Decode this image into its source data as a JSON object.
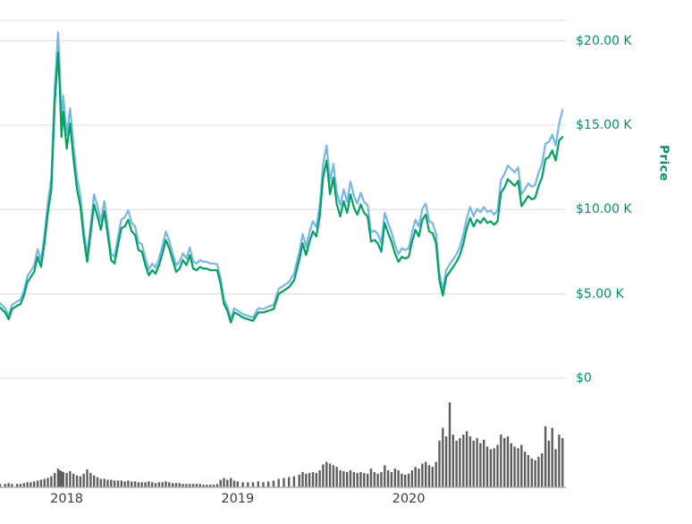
{
  "page": {
    "background": "#ffffff"
  },
  "chart_data": {
    "type": "line",
    "title": "",
    "grid": true,
    "legend": "none",
    "colors": {
      "grid": "#dcdcdc",
      "axis_line": "#b0b0b0",
      "background": "#ffffff"
    },
    "y_axis": {
      "title": "Price",
      "unit": "USD (thousands)",
      "color": "#00906c",
      "range": [
        0,
        21.2
      ],
      "ticks": [
        {
          "label": "$20.00 K",
          "value": 20
        },
        {
          "label": "$15.00 K",
          "value": 15
        },
        {
          "label": "$10.00 K",
          "value": 10
        },
        {
          "label": "$5.00 K",
          "value": 5
        },
        {
          "label": "$0",
          "value": 0
        }
      ]
    },
    "x_axis": {
      "unit": "year",
      "color": "#3c3c3c",
      "range": [
        2017.61,
        2020.92
      ],
      "ticks": [
        {
          "label": "2018",
          "value": 2018
        },
        {
          "label": "2019",
          "value": 2019
        },
        {
          "label": "2020",
          "value": 2020
        }
      ]
    },
    "x": [
      2017.61,
      2017.64,
      2017.66,
      2017.68,
      2017.71,
      2017.73,
      2017.75,
      2017.77,
      2017.79,
      2017.81,
      2017.83,
      2017.85,
      2017.87,
      2017.89,
      2017.91,
      2017.93,
      2017.95,
      2017.96,
      2017.97,
      2017.98,
      2018.0,
      2018.02,
      2018.04,
      2018.06,
      2018.08,
      2018.1,
      2018.12,
      2018.14,
      2018.16,
      2018.18,
      2018.2,
      2018.22,
      2018.24,
      2018.26,
      2018.28,
      2018.3,
      2018.32,
      2018.34,
      2018.36,
      2018.38,
      2018.4,
      2018.42,
      2018.44,
      2018.46,
      2018.48,
      2018.5,
      2018.52,
      2018.54,
      2018.56,
      2018.58,
      2018.6,
      2018.62,
      2018.64,
      2018.66,
      2018.68,
      2018.7,
      2018.72,
      2018.74,
      2018.76,
      2018.78,
      2018.8,
      2018.82,
      2018.84,
      2018.86,
      2018.88,
      2018.9,
      2018.92,
      2018.94,
      2018.96,
      2018.98,
      2019.0,
      2019.03,
      2019.06,
      2019.09,
      2019.12,
      2019.15,
      2019.18,
      2019.21,
      2019.24,
      2019.27,
      2019.3,
      2019.33,
      2019.36,
      2019.38,
      2019.4,
      2019.42,
      2019.44,
      2019.46,
      2019.48,
      2019.5,
      2019.52,
      2019.54,
      2019.56,
      2019.58,
      2019.6,
      2019.62,
      2019.64,
      2019.66,
      2019.68,
      2019.7,
      2019.72,
      2019.74,
      2019.76,
      2019.78,
      2019.8,
      2019.82,
      2019.84,
      2019.86,
      2019.88,
      2019.9,
      2019.92,
      2019.94,
      2019.96,
      2019.98,
      2020.0,
      2020.02,
      2020.04,
      2020.06,
      2020.08,
      2020.1,
      2020.12,
      2020.14,
      2020.16,
      2020.18,
      2020.2,
      2020.22,
      2020.24,
      2020.26,
      2020.28,
      2020.3,
      2020.32,
      2020.34,
      2020.36,
      2020.38,
      2020.4,
      2020.42,
      2020.44,
      2020.46,
      2020.48,
      2020.5,
      2020.52,
      2020.54,
      2020.56,
      2020.58,
      2020.6,
      2020.62,
      2020.64,
      2020.66,
      2020.68,
      2020.7,
      2020.72,
      2020.74,
      2020.76,
      2020.78,
      2020.8,
      2020.82,
      2020.84,
      2020.86,
      2020.88,
      2020.9
    ],
    "series": [
      {
        "name": "series-1-blue",
        "color": "#76b6e8",
        "values": [
          4.45,
          4.15,
          3.7,
          4.35,
          4.55,
          4.65,
          5.2,
          6.05,
          6.35,
          6.7,
          7.65,
          7.0,
          8.5,
          10.4,
          11.9,
          17.3,
          20.5,
          18.2,
          15.2,
          16.75,
          14.4,
          16.0,
          13.8,
          11.9,
          10.8,
          8.8,
          7.3,
          9.1,
          10.9,
          10.2,
          9.3,
          10.5,
          9.0,
          7.4,
          7.2,
          8.4,
          9.4,
          9.55,
          9.95,
          9.2,
          9.0,
          8.05,
          7.95,
          7.1,
          6.45,
          6.8,
          6.55,
          7.1,
          7.85,
          8.7,
          8.15,
          7.4,
          6.7,
          6.9,
          7.4,
          7.1,
          7.75,
          6.9,
          6.8,
          7.0,
          6.9,
          6.9,
          6.8,
          6.8,
          6.75,
          5.95,
          4.65,
          4.25,
          3.5,
          4.15,
          4.0,
          3.8,
          3.7,
          3.6,
          4.15,
          4.1,
          4.25,
          4.35,
          5.3,
          5.5,
          5.7,
          6.2,
          7.45,
          8.55,
          7.8,
          8.65,
          9.3,
          8.95,
          10.25,
          12.7,
          13.8,
          11.65,
          12.7,
          11.0,
          10.25,
          11.2,
          10.45,
          11.65,
          10.8,
          10.35,
          11.0,
          10.45,
          10.25,
          8.65,
          8.75,
          8.55,
          8.0,
          9.8,
          9.2,
          8.65,
          7.9,
          7.35,
          7.7,
          7.6,
          7.7,
          8.65,
          9.4,
          9.0,
          10.05,
          10.35,
          9.3,
          9.2,
          8.55,
          6.2,
          5.25,
          6.4,
          6.75,
          7.05,
          7.35,
          7.8,
          8.55,
          9.5,
          10.15,
          9.6,
          10.05,
          9.85,
          10.15,
          9.85,
          9.95,
          9.7,
          9.95,
          11.75,
          12.1,
          12.6,
          12.4,
          12.2,
          12.5,
          10.9,
          11.2,
          11.55,
          11.35,
          11.45,
          12.2,
          12.7,
          13.9,
          14.0,
          14.45,
          13.8,
          15.1,
          15.9
        ]
      },
      {
        "name": "series-2-green",
        "color": "#00a262",
        "values": [
          4.2,
          3.9,
          3.5,
          4.1,
          4.3,
          4.4,
          4.9,
          5.7,
          6.0,
          6.3,
          7.2,
          6.6,
          8.0,
          9.8,
          11.2,
          16.3,
          19.3,
          17.2,
          14.3,
          15.8,
          13.6,
          15.1,
          13.0,
          11.2,
          10.2,
          8.3,
          6.9,
          8.6,
          10.3,
          9.6,
          8.8,
          9.9,
          8.5,
          7.0,
          6.8,
          7.9,
          8.9,
          9.0,
          9.4,
          8.7,
          8.5,
          7.6,
          7.5,
          6.7,
          6.1,
          6.4,
          6.2,
          6.7,
          7.4,
          8.2,
          7.7,
          7.0,
          6.3,
          6.5,
          7.0,
          6.7,
          7.3,
          6.5,
          6.4,
          6.6,
          6.5,
          6.5,
          6.4,
          6.4,
          6.4,
          5.6,
          4.4,
          4.0,
          3.3,
          3.9,
          3.8,
          3.6,
          3.5,
          3.4,
          3.9,
          3.9,
          4.0,
          4.1,
          5.0,
          5.2,
          5.4,
          5.8,
          7.0,
          8.0,
          7.3,
          8.1,
          8.7,
          8.4,
          9.6,
          11.9,
          12.9,
          10.9,
          11.9,
          10.3,
          9.6,
          10.5,
          9.8,
          10.9,
          10.1,
          9.7,
          10.3,
          9.8,
          9.6,
          8.1,
          8.2,
          8.0,
          7.5,
          9.2,
          8.6,
          8.1,
          7.4,
          6.9,
          7.2,
          7.1,
          7.2,
          8.1,
          8.8,
          8.4,
          9.4,
          9.7,
          8.7,
          8.6,
          8.0,
          5.8,
          4.9,
          6.0,
          6.3,
          6.6,
          6.9,
          7.3,
          8.0,
          8.9,
          9.5,
          9.0,
          9.4,
          9.2,
          9.5,
          9.2,
          9.3,
          9.1,
          9.3,
          11.0,
          11.3,
          11.8,
          11.6,
          11.4,
          11.7,
          10.2,
          10.5,
          10.8,
          10.6,
          10.7,
          11.4,
          11.9,
          13.0,
          13.1,
          13.5,
          12.9,
          14.1,
          14.3
        ]
      }
    ],
    "volume": {
      "name": "volume",
      "color": "#5e5e5e",
      "unit": "relative (0-100)",
      "range": [
        0,
        100
      ],
      "values": [
        4,
        4,
        5,
        4,
        4,
        4,
        5,
        6,
        6,
        7,
        8,
        9,
        10,
        11,
        13,
        17,
        22,
        20,
        19,
        18,
        17,
        19,
        16,
        14,
        13,
        16,
        21,
        17,
        14,
        12,
        10,
        10,
        9,
        9,
        8,
        8,
        8,
        7,
        8,
        7,
        7,
        6,
        6,
        6,
        7,
        6,
        5,
        6,
        6,
        7,
        6,
        5,
        5,
        5,
        4,
        4,
        4,
        4,
        4,
        4,
        3,
        3,
        3,
        3,
        4,
        9,
        11,
        9,
        11,
        8,
        7,
        6,
        6,
        6,
        7,
        6,
        7,
        8,
        10,
        11,
        12,
        13,
        15,
        18,
        16,
        17,
        18,
        17,
        20,
        27,
        30,
        28,
        26,
        24,
        20,
        19,
        18,
        20,
        18,
        17,
        18,
        17,
        16,
        22,
        18,
        16,
        18,
        26,
        20,
        18,
        22,
        20,
        16,
        15,
        16,
        20,
        24,
        22,
        28,
        30,
        26,
        24,
        30,
        55,
        70,
        60,
        100,
        62,
        55,
        58,
        62,
        66,
        60,
        55,
        58,
        52,
        56,
        48,
        45,
        46,
        50,
        62,
        58,
        60,
        52,
        48,
        46,
        50,
        42,
        38,
        34,
        32,
        36,
        40,
        72,
        55,
        70,
        45,
        62,
        58
      ]
    }
  }
}
